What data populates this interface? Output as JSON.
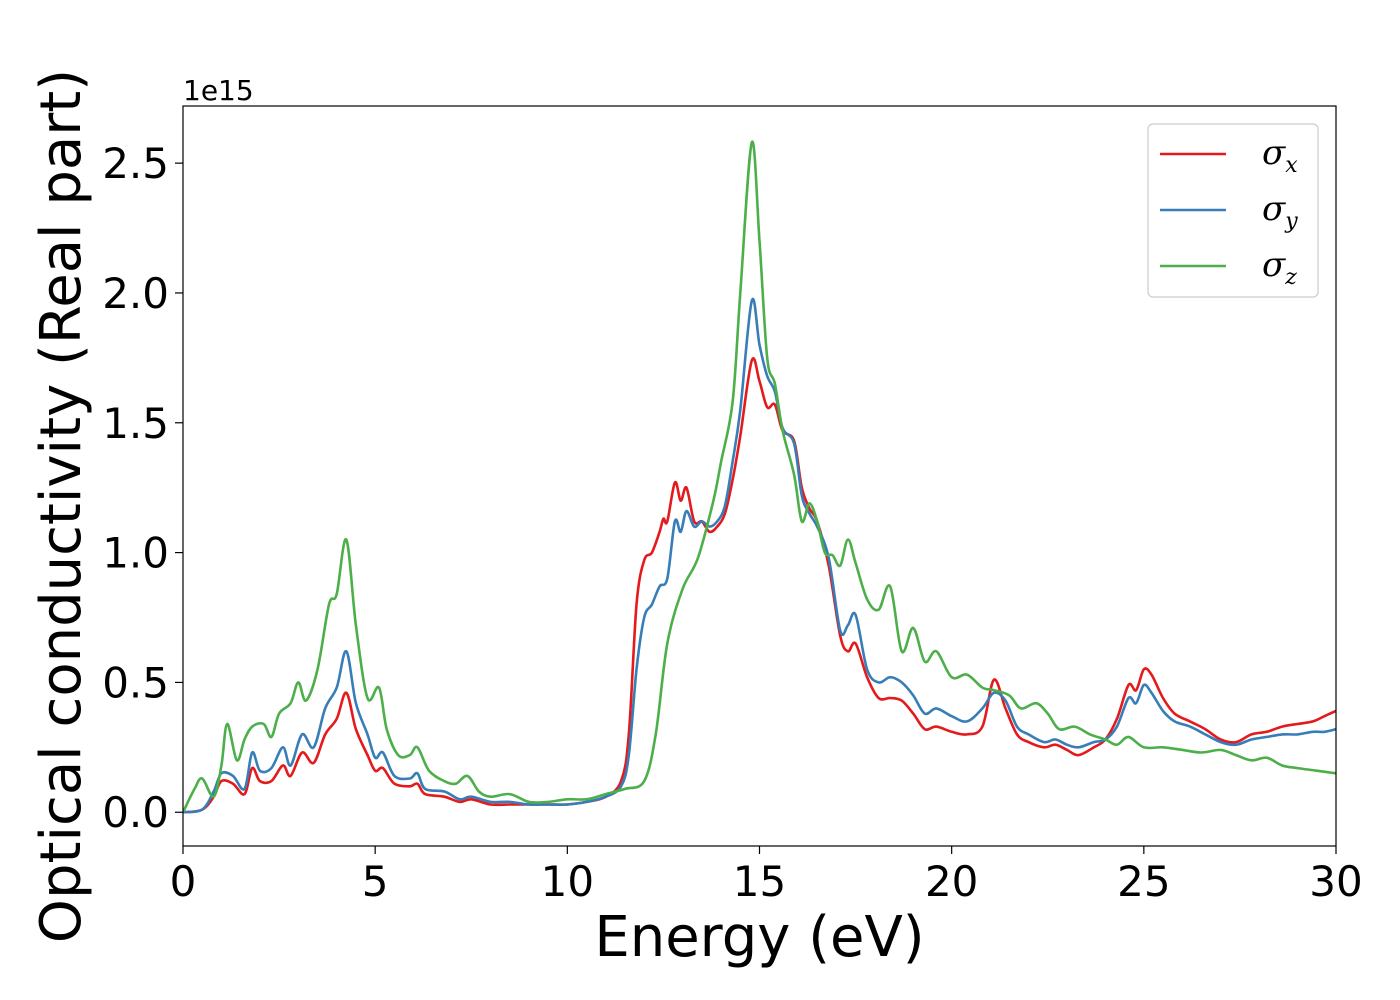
{
  "chart_data": {
    "type": "line",
    "xlabel": "Energy (eV)",
    "ylabel": "Optical conductivity (Real part)",
    "y_offset_label": "1e15",
    "xlim": [
      0,
      30
    ],
    "ylim": [
      -0.13,
      2.72
    ],
    "x_ticks": [
      0,
      5,
      10,
      15,
      20,
      25,
      30
    ],
    "x_tick_labels": [
      "0",
      "5",
      "10",
      "15",
      "20",
      "25",
      "30"
    ],
    "y_ticks": [
      0.0,
      0.5,
      1.0,
      1.5,
      2.0,
      2.5
    ],
    "y_tick_labels": [
      "0.0",
      "0.5",
      "1.0",
      "1.5",
      "2.0",
      "2.5"
    ],
    "grid": false,
    "legend_position": "top-right",
    "series": [
      {
        "name": "σx",
        "legend_symbol": "σ",
        "legend_subscript": "x",
        "color": "#e41a1c",
        "points": [
          [
            0,
            0
          ],
          [
            0.5,
            0.01
          ],
          [
            0.8,
            0.06
          ],
          [
            1.0,
            0.12
          ],
          [
            1.3,
            0.11
          ],
          [
            1.6,
            0.07
          ],
          [
            1.8,
            0.17
          ],
          [
            2.0,
            0.12
          ],
          [
            2.3,
            0.12
          ],
          [
            2.6,
            0.18
          ],
          [
            2.8,
            0.14
          ],
          [
            3.1,
            0.23
          ],
          [
            3.4,
            0.19
          ],
          [
            3.7,
            0.3
          ],
          [
            4.0,
            0.36
          ],
          [
            4.25,
            0.46
          ],
          [
            4.5,
            0.32
          ],
          [
            4.8,
            0.22
          ],
          [
            5.0,
            0.16
          ],
          [
            5.2,
            0.17
          ],
          [
            5.5,
            0.11
          ],
          [
            5.9,
            0.1
          ],
          [
            6.1,
            0.11
          ],
          [
            6.3,
            0.07
          ],
          [
            6.8,
            0.06
          ],
          [
            7.2,
            0.04
          ],
          [
            7.5,
            0.05
          ],
          [
            8.0,
            0.03
          ],
          [
            8.5,
            0.03
          ],
          [
            9.0,
            0.03
          ],
          [
            9.5,
            0.03
          ],
          [
            10.0,
            0.03
          ],
          [
            10.5,
            0.04
          ],
          [
            11.0,
            0.06
          ],
          [
            11.4,
            0.12
          ],
          [
            11.6,
            0.3
          ],
          [
            11.8,
            0.8
          ],
          [
            12.0,
            0.97
          ],
          [
            12.2,
            1.0
          ],
          [
            12.4,
            1.08
          ],
          [
            12.5,
            1.13
          ],
          [
            12.6,
            1.12
          ],
          [
            12.8,
            1.27
          ],
          [
            12.95,
            1.2
          ],
          [
            13.1,
            1.25
          ],
          [
            13.3,
            1.12
          ],
          [
            13.5,
            1.12
          ],
          [
            13.7,
            1.08
          ],
          [
            13.9,
            1.1
          ],
          [
            14.1,
            1.15
          ],
          [
            14.3,
            1.28
          ],
          [
            14.5,
            1.45
          ],
          [
            14.8,
            1.74
          ],
          [
            15.0,
            1.66
          ],
          [
            15.2,
            1.56
          ],
          [
            15.4,
            1.57
          ],
          [
            15.6,
            1.47
          ],
          [
            15.9,
            1.43
          ],
          [
            16.1,
            1.25
          ],
          [
            16.3,
            1.17
          ],
          [
            16.5,
            1.12
          ],
          [
            16.8,
            0.95
          ],
          [
            17.1,
            0.68
          ],
          [
            17.3,
            0.62
          ],
          [
            17.5,
            0.65
          ],
          [
            17.8,
            0.52
          ],
          [
            18.1,
            0.44
          ],
          [
            18.4,
            0.44
          ],
          [
            18.7,
            0.43
          ],
          [
            19.0,
            0.38
          ],
          [
            19.3,
            0.32
          ],
          [
            19.6,
            0.33
          ],
          [
            20.0,
            0.31
          ],
          [
            20.4,
            0.3
          ],
          [
            20.8,
            0.33
          ],
          [
            21.1,
            0.51
          ],
          [
            21.4,
            0.4
          ],
          [
            21.7,
            0.3
          ],
          [
            22.0,
            0.27
          ],
          [
            22.4,
            0.25
          ],
          [
            22.7,
            0.26
          ],
          [
            23.0,
            0.24
          ],
          [
            23.3,
            0.22
          ],
          [
            23.7,
            0.25
          ],
          [
            24.0,
            0.28
          ],
          [
            24.3,
            0.36
          ],
          [
            24.6,
            0.49
          ],
          [
            24.8,
            0.47
          ],
          [
            25.0,
            0.55
          ],
          [
            25.2,
            0.53
          ],
          [
            25.5,
            0.44
          ],
          [
            25.8,
            0.38
          ],
          [
            26.2,
            0.35
          ],
          [
            26.6,
            0.32
          ],
          [
            27.0,
            0.28
          ],
          [
            27.4,
            0.27
          ],
          [
            27.8,
            0.3
          ],
          [
            28.2,
            0.31
          ],
          [
            28.6,
            0.33
          ],
          [
            29.0,
            0.34
          ],
          [
            29.4,
            0.35
          ],
          [
            29.7,
            0.37
          ],
          [
            30.0,
            0.39
          ]
        ]
      },
      {
        "name": "σy",
        "legend_symbol": "σ",
        "legend_subscript": "y",
        "color": "#377eb8",
        "points": [
          [
            0,
            0
          ],
          [
            0.5,
            0.01
          ],
          [
            0.8,
            0.08
          ],
          [
            1.0,
            0.15
          ],
          [
            1.3,
            0.14
          ],
          [
            1.6,
            0.09
          ],
          [
            1.8,
            0.23
          ],
          [
            2.0,
            0.16
          ],
          [
            2.3,
            0.17
          ],
          [
            2.6,
            0.25
          ],
          [
            2.8,
            0.18
          ],
          [
            3.1,
            0.3
          ],
          [
            3.4,
            0.25
          ],
          [
            3.7,
            0.4
          ],
          [
            4.0,
            0.48
          ],
          [
            4.25,
            0.62
          ],
          [
            4.5,
            0.42
          ],
          [
            4.8,
            0.3
          ],
          [
            5.0,
            0.21
          ],
          [
            5.2,
            0.23
          ],
          [
            5.5,
            0.14
          ],
          [
            5.9,
            0.13
          ],
          [
            6.1,
            0.15
          ],
          [
            6.3,
            0.09
          ],
          [
            6.8,
            0.08
          ],
          [
            7.2,
            0.05
          ],
          [
            7.5,
            0.06
          ],
          [
            8.0,
            0.04
          ],
          [
            8.5,
            0.04
          ],
          [
            9.0,
            0.03
          ],
          [
            9.5,
            0.03
          ],
          [
            10.0,
            0.03
          ],
          [
            10.5,
            0.04
          ],
          [
            11.0,
            0.06
          ],
          [
            11.4,
            0.1
          ],
          [
            11.6,
            0.22
          ],
          [
            11.8,
            0.55
          ],
          [
            12.0,
            0.75
          ],
          [
            12.2,
            0.8
          ],
          [
            12.4,
            0.87
          ],
          [
            12.6,
            0.9
          ],
          [
            12.8,
            1.12
          ],
          [
            12.95,
            1.08
          ],
          [
            13.1,
            1.16
          ],
          [
            13.3,
            1.1
          ],
          [
            13.5,
            1.12
          ],
          [
            13.7,
            1.1
          ],
          [
            13.9,
            1.12
          ],
          [
            14.1,
            1.18
          ],
          [
            14.3,
            1.35
          ],
          [
            14.5,
            1.55
          ],
          [
            14.8,
            1.97
          ],
          [
            15.0,
            1.8
          ],
          [
            15.2,
            1.68
          ],
          [
            15.4,
            1.62
          ],
          [
            15.6,
            1.48
          ],
          [
            15.9,
            1.42
          ],
          [
            16.1,
            1.22
          ],
          [
            16.3,
            1.15
          ],
          [
            16.5,
            1.1
          ],
          [
            16.8,
            0.98
          ],
          [
            17.1,
            0.7
          ],
          [
            17.3,
            0.72
          ],
          [
            17.5,
            0.76
          ],
          [
            17.8,
            0.55
          ],
          [
            18.1,
            0.5
          ],
          [
            18.4,
            0.52
          ],
          [
            18.7,
            0.5
          ],
          [
            19.0,
            0.45
          ],
          [
            19.3,
            0.38
          ],
          [
            19.6,
            0.4
          ],
          [
            20.0,
            0.37
          ],
          [
            20.4,
            0.35
          ],
          [
            20.8,
            0.4
          ],
          [
            21.1,
            0.46
          ],
          [
            21.4,
            0.43
          ],
          [
            21.7,
            0.33
          ],
          [
            22.0,
            0.3
          ],
          [
            22.4,
            0.27
          ],
          [
            22.7,
            0.28
          ],
          [
            23.0,
            0.26
          ],
          [
            23.3,
            0.25
          ],
          [
            23.7,
            0.27
          ],
          [
            24.0,
            0.28
          ],
          [
            24.3,
            0.33
          ],
          [
            24.6,
            0.44
          ],
          [
            24.8,
            0.42
          ],
          [
            25.0,
            0.49
          ],
          [
            25.2,
            0.46
          ],
          [
            25.5,
            0.39
          ],
          [
            25.8,
            0.35
          ],
          [
            26.2,
            0.33
          ],
          [
            26.6,
            0.3
          ],
          [
            27.0,
            0.27
          ],
          [
            27.4,
            0.26
          ],
          [
            27.8,
            0.28
          ],
          [
            28.2,
            0.29
          ],
          [
            28.6,
            0.3
          ],
          [
            29.0,
            0.3
          ],
          [
            29.4,
            0.31
          ],
          [
            29.7,
            0.31
          ],
          [
            30.0,
            0.32
          ]
        ]
      },
      {
        "name": "σz",
        "legend_symbol": "σ",
        "legend_subscript": "z",
        "color": "#4daf4a",
        "points": [
          [
            0,
            0
          ],
          [
            0.3,
            0.09
          ],
          [
            0.5,
            0.13
          ],
          [
            0.8,
            0.06
          ],
          [
            1.0,
            0.18
          ],
          [
            1.15,
            0.34
          ],
          [
            1.4,
            0.2
          ],
          [
            1.6,
            0.28
          ],
          [
            1.8,
            0.33
          ],
          [
            2.1,
            0.34
          ],
          [
            2.3,
            0.29
          ],
          [
            2.5,
            0.38
          ],
          [
            2.8,
            0.42
          ],
          [
            3.0,
            0.5
          ],
          [
            3.2,
            0.43
          ],
          [
            3.5,
            0.55
          ],
          [
            3.8,
            0.8
          ],
          [
            4.0,
            0.84
          ],
          [
            4.25,
            1.05
          ],
          [
            4.5,
            0.72
          ],
          [
            4.8,
            0.44
          ],
          [
            5.1,
            0.48
          ],
          [
            5.3,
            0.32
          ],
          [
            5.6,
            0.22
          ],
          [
            5.9,
            0.22
          ],
          [
            6.1,
            0.25
          ],
          [
            6.4,
            0.16
          ],
          [
            6.8,
            0.12
          ],
          [
            7.1,
            0.11
          ],
          [
            7.4,
            0.14
          ],
          [
            7.7,
            0.08
          ],
          [
            8.0,
            0.06
          ],
          [
            8.5,
            0.07
          ],
          [
            9.0,
            0.04
          ],
          [
            9.5,
            0.04
          ],
          [
            10.0,
            0.05
          ],
          [
            10.5,
            0.05
          ],
          [
            11.0,
            0.07
          ],
          [
            11.5,
            0.09
          ],
          [
            12.0,
            0.12
          ],
          [
            12.3,
            0.3
          ],
          [
            12.6,
            0.65
          ],
          [
            13.0,
            0.86
          ],
          [
            13.4,
            0.98
          ],
          [
            13.8,
            1.2
          ],
          [
            14.0,
            1.35
          ],
          [
            14.3,
            1.58
          ],
          [
            14.5,
            2.0
          ],
          [
            14.8,
            2.58
          ],
          [
            15.0,
            2.2
          ],
          [
            15.2,
            1.75
          ],
          [
            15.4,
            1.65
          ],
          [
            15.6,
            1.47
          ],
          [
            15.9,
            1.3
          ],
          [
            16.1,
            1.12
          ],
          [
            16.3,
            1.19
          ],
          [
            16.5,
            1.12
          ],
          [
            16.7,
            1.0
          ],
          [
            16.9,
            0.99
          ],
          [
            17.1,
            0.95
          ],
          [
            17.3,
            1.05
          ],
          [
            17.5,
            0.96
          ],
          [
            17.8,
            0.82
          ],
          [
            18.1,
            0.78
          ],
          [
            18.4,
            0.87
          ],
          [
            18.7,
            0.62
          ],
          [
            19.0,
            0.71
          ],
          [
            19.3,
            0.58
          ],
          [
            19.6,
            0.62
          ],
          [
            20.0,
            0.52
          ],
          [
            20.4,
            0.53
          ],
          [
            20.8,
            0.48
          ],
          [
            21.1,
            0.47
          ],
          [
            21.5,
            0.45
          ],
          [
            21.8,
            0.4
          ],
          [
            22.2,
            0.42
          ],
          [
            22.5,
            0.38
          ],
          [
            22.8,
            0.32
          ],
          [
            23.2,
            0.33
          ],
          [
            23.6,
            0.3
          ],
          [
            24.0,
            0.28
          ],
          [
            24.3,
            0.26
          ],
          [
            24.6,
            0.29
          ],
          [
            25.0,
            0.25
          ],
          [
            25.5,
            0.25
          ],
          [
            26.0,
            0.24
          ],
          [
            26.5,
            0.23
          ],
          [
            27.0,
            0.24
          ],
          [
            27.4,
            0.22
          ],
          [
            27.8,
            0.2
          ],
          [
            28.2,
            0.21
          ],
          [
            28.6,
            0.18
          ],
          [
            29.0,
            0.17
          ],
          [
            29.5,
            0.16
          ],
          [
            30.0,
            0.15
          ]
        ]
      }
    ]
  }
}
